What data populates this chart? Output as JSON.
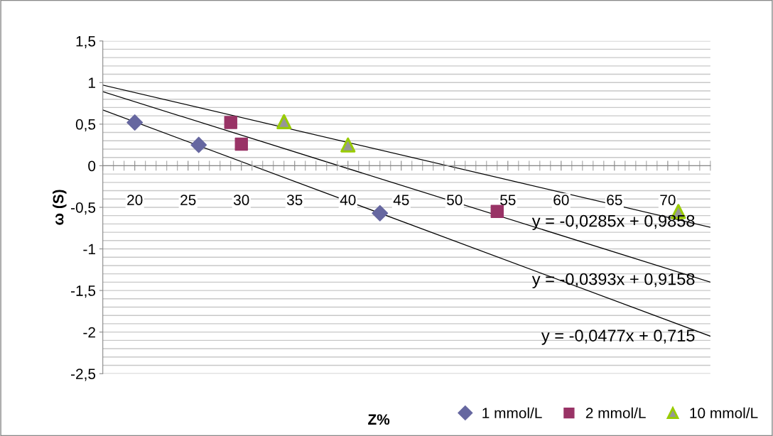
{
  "chart_data": {
    "type": "scatter",
    "xlabel": "Z%",
    "ylabel": "ω (S)",
    "series": [
      {
        "name": "1 mmol/L",
        "color": "#6667a0",
        "marker": "diamond",
        "x": [
          20,
          26,
          43
        ],
        "values": [
          0.52,
          0.25,
          -0.57
        ]
      },
      {
        "name": "2 mmol/L",
        "color": "#993366",
        "marker": "square",
        "x": [
          29,
          30,
          54
        ],
        "values": [
          0.52,
          0.26,
          -0.55
        ]
      },
      {
        "name": "10 mmol/L",
        "color": "#99cc00",
        "marker": "triangle",
        "x": [
          34,
          40,
          71
        ],
        "values": [
          0.53,
          0.25,
          -0.55
        ]
      },
      {
        "type": "line",
        "color": "#000000",
        "x": [
          17,
          74
        ],
        "values": [
          0.67,
          -2.05
        ]
      },
      {
        "type": "line",
        "color": "#000000",
        "x": [
          17,
          74
        ],
        "values": [
          0.89,
          -1.4
        ]
      },
      {
        "type": "line",
        "color": "#000000",
        "x": [
          17,
          74
        ],
        "values": [
          0.97,
          -0.74
        ]
      }
    ],
    "xlim": [
      17,
      74
    ],
    "xticks": [
      20,
      25,
      30,
      35,
      40,
      45,
      50,
      55,
      60,
      65,
      70
    ],
    "ylim": [
      -2.5,
      1.5
    ],
    "yticks": [
      {
        "value": -2.5,
        "label": "-2,5"
      },
      {
        "value": -2,
        "label": "-2"
      },
      {
        "value": -1.5,
        "label": "-1,5"
      },
      {
        "value": -1,
        "label": "-1"
      },
      {
        "value": -0.5,
        "label": "-0,5"
      },
      0,
      {
        "value": 0.5,
        "label": "0,5"
      },
      1,
      {
        "value": 1.5,
        "label": "1,5"
      }
    ],
    "annotations": [
      "y = -0,0285x + 0,9858",
      "y = -0,0393x + 0,9158",
      "y = -0,0477x + 0,715"
    ],
    "grid": "y",
    "legend": "bottom right"
  }
}
